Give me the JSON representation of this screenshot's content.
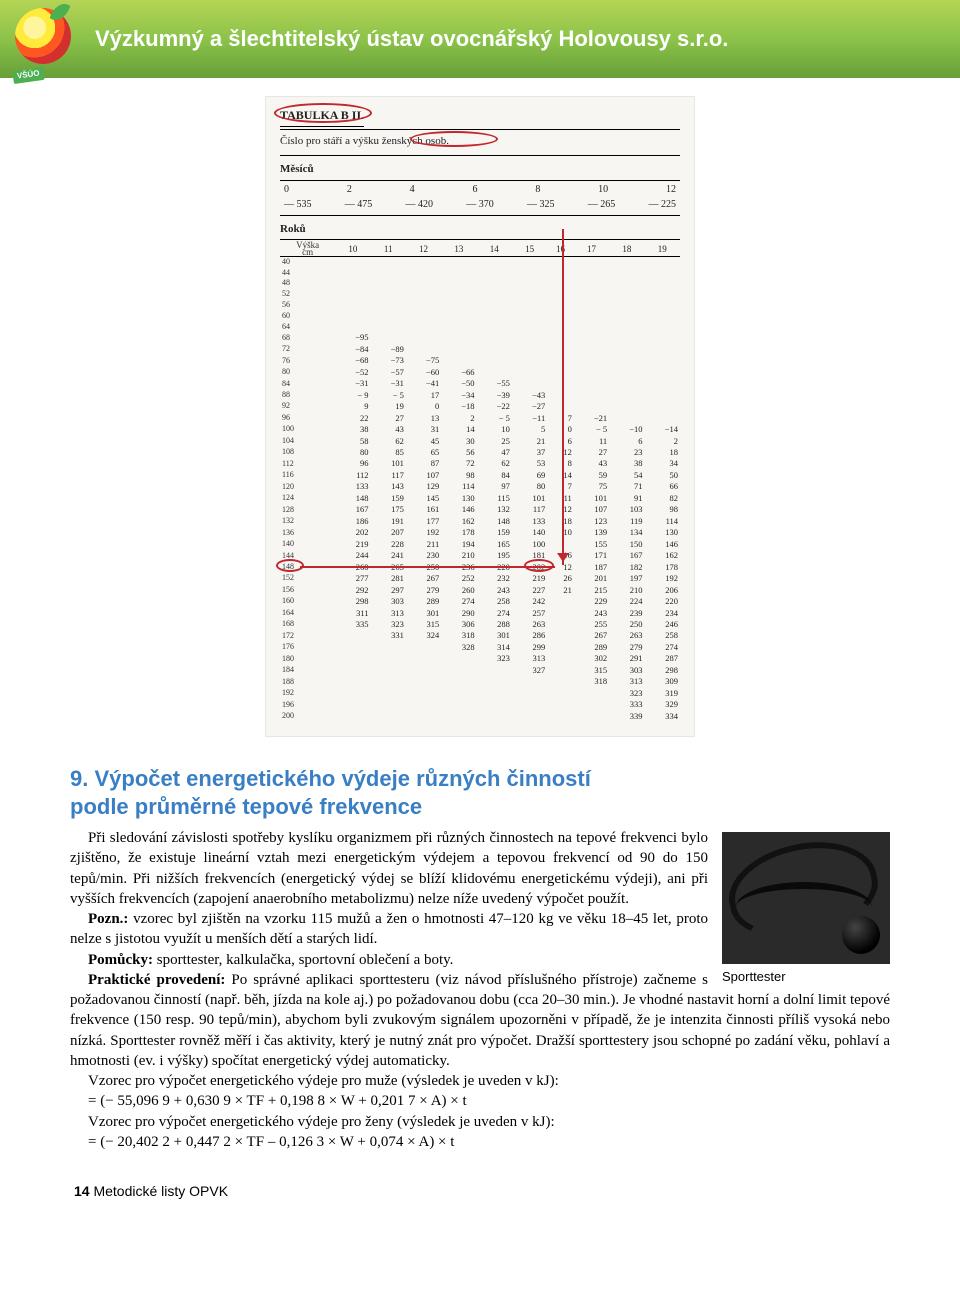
{
  "header": {
    "org_name": "Výzkumný a šlechtitelský ústav ovocnářský Holovousy s.r.o.",
    "logo_tag": "VŠÚO"
  },
  "scan": {
    "title": "TABULKA B II.",
    "subtitle": "Číslo pro stáří a výšku ženských osob.",
    "months_label": "Měsíců",
    "months_heads": [
      "0",
      "2",
      "4",
      "6",
      "8",
      "10",
      "12"
    ],
    "months_vals": [
      "— 535",
      "— 475",
      "— 420",
      "— 370",
      "— 325",
      "— 265",
      "— 225"
    ],
    "years_label": "Roků",
    "vyska_label": "Výška cm",
    "year_heads": [
      "10",
      "11",
      "12",
      "13",
      "14",
      "15",
      "16",
      "17",
      "18",
      "19"
    ],
    "height_rows": [
      "40",
      "44",
      "48",
      "52",
      "56",
      "60",
      "64",
      "68",
      "72",
      "76",
      "80",
      "84",
      "88",
      "92",
      "96",
      "100",
      "104",
      "108",
      "112",
      "116",
      "120",
      "124",
      "128",
      "132",
      "136",
      "140",
      "144",
      "148",
      "152",
      "156",
      "160",
      "164",
      "168",
      "172",
      "176",
      "180",
      "184",
      "188",
      "192",
      "196",
      "200"
    ],
    "cells": {
      "68": [
        "−95",
        "",
        "",
        "",
        "",
        "",
        "",
        "",
        "",
        ""
      ],
      "72": [
        "−84",
        "−89",
        "",
        "",
        "",
        "",
        "",
        "",
        "",
        ""
      ],
      "76": [
        "−68",
        "−73",
        "−75",
        "",
        "",
        "",
        "",
        "",
        "",
        ""
      ],
      "80": [
        "−52",
        "−57",
        "−60",
        "−66",
        "",
        "",
        "",
        "",
        "",
        ""
      ],
      "84": [
        "−31",
        "−31",
        "−41",
        "−50",
        "−55",
        "",
        "",
        "",
        "",
        ""
      ],
      "88": [
        "− 9",
        "− 5",
        "17",
        "−34",
        "−39",
        "−43",
        "",
        "",
        "",
        ""
      ],
      "92": [
        "9",
        "19",
        "0",
        "−18",
        "−22",
        "−27",
        "",
        "",
        "",
        ""
      ],
      "96": [
        "22",
        "27",
        "13",
        "2",
        "− 5",
        "−11",
        "7",
        "−21",
        "",
        ""
      ],
      "100": [
        "38",
        "43",
        "31",
        "14",
        "10",
        "5",
        "0",
        "− 5",
        "−10",
        "−14"
      ],
      "104": [
        "58",
        "62",
        "45",
        "30",
        "25",
        "21",
        "6",
        "11",
        "6",
        "2"
      ],
      "108": [
        "80",
        "85",
        "65",
        "56",
        "47",
        "37",
        "12",
        "27",
        "23",
        "18"
      ],
      "112": [
        "96",
        "101",
        "87",
        "72",
        "62",
        "53",
        "8",
        "43",
        "38",
        "34"
      ],
      "116": [
        "112",
        "117",
        "107",
        "98",
        "84",
        "69",
        "14",
        "59",
        "54",
        "50"
      ],
      "120": [
        "133",
        "143",
        "129",
        "114",
        "97",
        "80",
        "7",
        "75",
        "71",
        "66"
      ],
      "124": [
        "148",
        "159",
        "145",
        "130",
        "115",
        "101",
        "11",
        "101",
        "91",
        "82"
      ],
      "128": [
        "167",
        "175",
        "161",
        "146",
        "132",
        "117",
        "12",
        "107",
        "103",
        "98"
      ],
      "132": [
        "186",
        "191",
        "177",
        "162",
        "148",
        "133",
        "18",
        "123",
        "119",
        "114"
      ],
      "136": [
        "202",
        "207",
        "192",
        "178",
        "159",
        "140",
        "10",
        "139",
        "134",
        "130"
      ],
      "140": [
        "219",
        "228",
        "211",
        "194",
        "165",
        "100",
        "",
        "155",
        "150",
        "146"
      ],
      "144": [
        "244",
        "241",
        "230",
        "210",
        "195",
        "181",
        "16",
        "171",
        "167",
        "162"
      ],
      "148": [
        "260",
        "265",
        "250",
        "236",
        "220",
        "202",
        "12",
        "187",
        "182",
        "178"
      ],
      "152": [
        "277",
        "281",
        "267",
        "252",
        "232",
        "219",
        "26",
        "201",
        "197",
        "192"
      ],
      "156": [
        "292",
        "297",
        "279",
        "260",
        "243",
        "227",
        "21",
        "215",
        "210",
        "206"
      ],
      "160": [
        "298",
        "303",
        "289",
        "274",
        "258",
        "242",
        "",
        "229",
        "224",
        "220"
      ],
      "164": [
        "311",
        "313",
        "301",
        "290",
        "274",
        "257",
        "",
        "243",
        "239",
        "234"
      ],
      "168": [
        "335",
        "323",
        "315",
        "306",
        "288",
        "263",
        "",
        "255",
        "250",
        "246"
      ],
      "172": [
        "",
        "331",
        "324",
        "318",
        "301",
        "286",
        "",
        "267",
        "263",
        "258"
      ],
      "176": [
        "",
        "",
        "",
        "328",
        "314",
        "299",
        "",
        "289",
        "279",
        "274"
      ],
      "180": [
        "",
        "",
        "",
        "",
        "323",
        "313",
        "",
        "302",
        "291",
        "287"
      ],
      "184": [
        "",
        "",
        "",
        "",
        "",
        "327",
        "",
        "315",
        "303",
        "298"
      ],
      "188": [
        "",
        "",
        "",
        "",
        "",
        "",
        "",
        "318",
        "313",
        "309"
      ],
      "192": [
        "",
        "",
        "",
        "",
        "",
        "",
        "",
        "",
        "323",
        "319"
      ],
      "196": [
        "",
        "",
        "",
        "",
        "",
        "",
        "",
        "",
        "333",
        "329"
      ],
      "200": [
        "",
        "",
        "",
        "",
        "",
        "",
        "",
        "",
        "339",
        "334"
      ]
    },
    "highlight_row": "168",
    "highlight_col_value": "263"
  },
  "section": {
    "number": "9.",
    "title_line1": "Výpočet energetického výdeje různých činností",
    "title_line2": "podle průměrné tepové frekvence"
  },
  "fig": {
    "caption": "Sporttester"
  },
  "body": {
    "p1": "Při sledování závislosti spotřeby kyslíku organizmem při různých činnostech na tepové frekvenci bylo zjištěno, že existuje lineární vztah mezi energetickým výdejem a tepovou frekvencí od 90 do 150 tepů/min. Při nižších frekvencích (energetický výdej se blíží klidovému energetickému výdeji), ani při vyšších frekvencích (zapojení anaerobního metabolizmu) nelze níže uvedený výpočet použít.",
    "p2_label": "Pozn.:",
    "p2": " vzorec byl zjištěn na vzorku 115 mužů a žen o hmotnosti 47–120 kg ve věku 18–45 let, proto nelze s jistotou využít u menších dětí a starých lidí.",
    "p3_label": "Pomůcky:",
    "p3": " sporttester, kalkulačka, sportovní oblečení a boty.",
    "p4_label": "Praktické provedení:",
    "p4": " Po správné aplikaci sporttesteru (viz návod příslušného přístroje) začneme s požadovanou činností (např. běh, jízda na kole aj.) po požadovanou dobu (cca 20–30 min.). Je vhodné nastavit horní a dolní limit tepové frekvence (150 resp. 90 tepů/min), abychom byli zvukovým signálem upozorněni v případě, že je intenzita činnosti příliš vysoká nebo nízká. Sporttester rovněž měří i čas aktivity, který je nutný znát pro výpočet. Dražší sporttestery jsou schopné po zadání věku, pohlaví a hmotnosti (ev. i výšky) spočítat energetický výdej automaticky.",
    "p5": "Vzorec pro výpočet energetického výdeje pro muže (výsledek je uveden v kJ):",
    "f1": "= (− 55,096 9 + 0,630 9 × TF + 0,198 8 × W + 0,201 7 × A) × t",
    "p6": "Vzorec pro výpočet energetického výdeje pro ženy (výsledek je uveden v kJ):",
    "f2": "= (− 20,402 2 + 0,447 2 × TF – 0,126 3 × W + 0,074 × A) × t"
  },
  "footer": {
    "page": "14",
    "label": "Metodické listy OPVK"
  },
  "colors": {
    "heading": "#3a7fc4",
    "accent": "#c1272d",
    "header_grad_top": "#b5d455",
    "header_grad_bot": "#689f38"
  }
}
